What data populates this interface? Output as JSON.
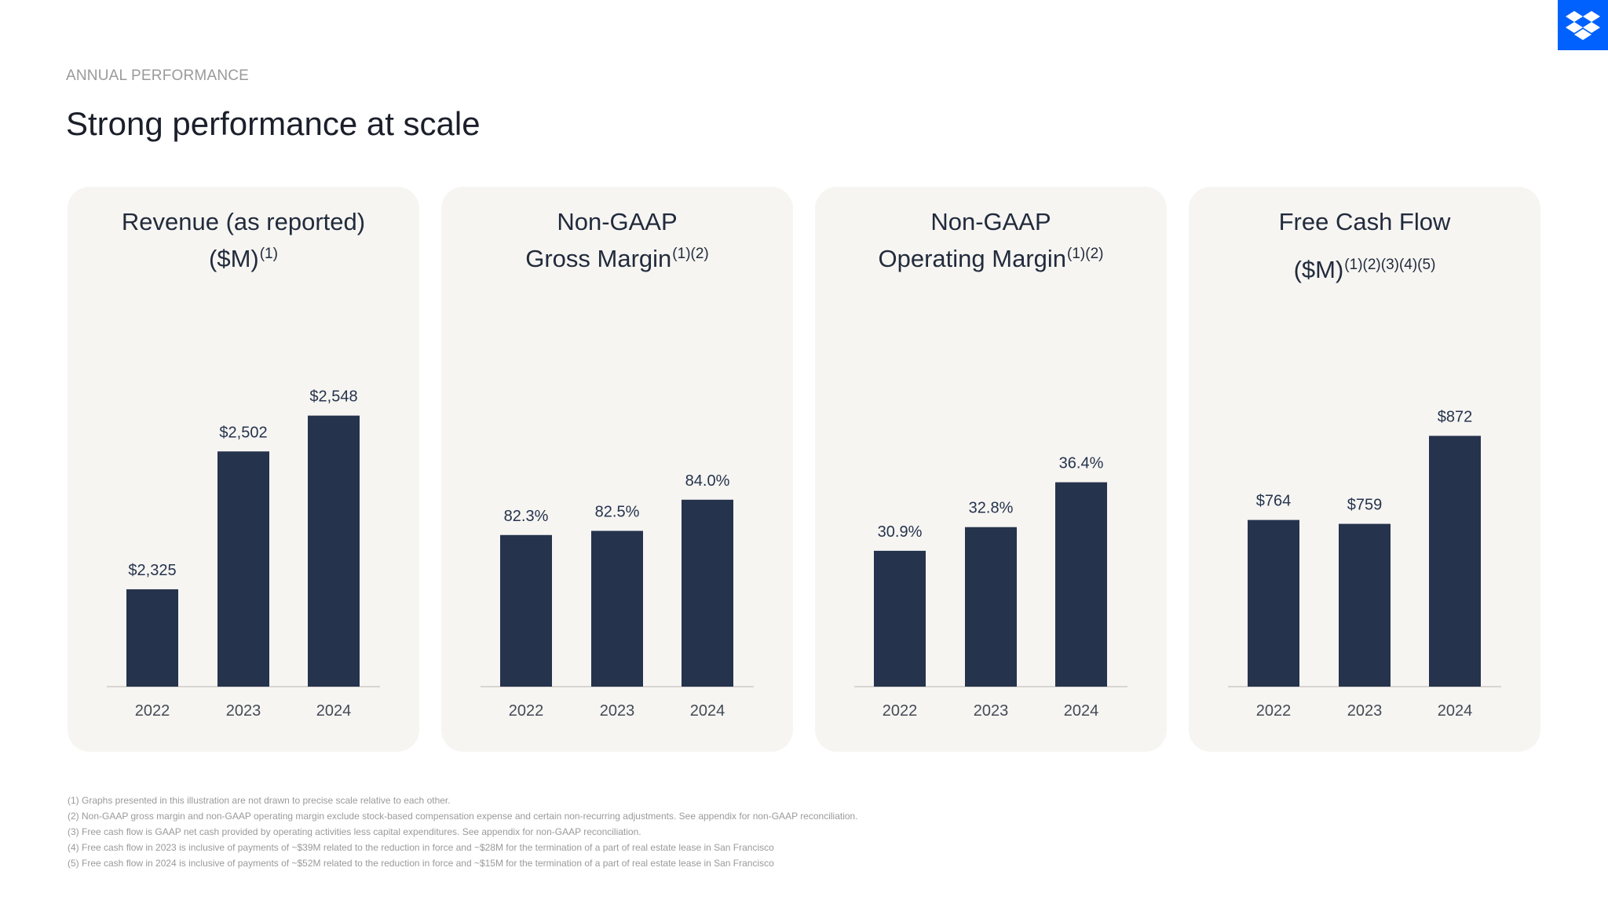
{
  "header": {
    "kicker": "ANNUAL PERFORMANCE",
    "title": "Strong performance at scale"
  },
  "logo": {
    "icon": "dropbox-box-icon",
    "color": "#0061fe"
  },
  "colors": {
    "bar": "#26334d",
    "card_bg": "#f6f5f2"
  },
  "chart_data": [
    {
      "type": "bar",
      "title_line1": "Revenue (as reported)",
      "title_line2": "($M)",
      "title_sup": "(1)",
      "categories": [
        "2022",
        "2023",
        "2024"
      ],
      "values": [
        2325,
        2502,
        2548
      ],
      "labels": [
        "$2,325",
        "$2,502",
        "$2,548"
      ],
      "ylim": [
        2200,
        2600
      ]
    },
    {
      "type": "bar",
      "title_line1": "Non-GAAP",
      "title_line2": "Gross Margin",
      "title_sup": "(1)(2)",
      "categories": [
        "2022",
        "2023",
        "2024"
      ],
      "values": [
        82.3,
        82.5,
        84.0
      ],
      "labels": [
        "82.3%",
        "82.5%",
        "84.0%"
      ],
      "ylim": [
        75,
        90
      ]
    },
    {
      "type": "bar",
      "title_line1": "Non-GAAP",
      "title_line2": "Operating Margin",
      "title_sup": "(1)(2)",
      "categories": [
        "2022",
        "2023",
        "2024"
      ],
      "values": [
        30.9,
        32.8,
        36.4
      ],
      "labels": [
        "30.9%",
        "32.8%",
        "36.4%"
      ],
      "ylim": [
        20,
        45
      ]
    },
    {
      "type": "bar",
      "title_line1": "Free Cash Flow",
      "title_line2": "($M)",
      "title_sup": "(1)(2)(3)(4)(5)",
      "categories": [
        "2022",
        "2023",
        "2024"
      ],
      "values": [
        764,
        759,
        872
      ],
      "labels": [
        "$764",
        "$759",
        "$872"
      ],
      "ylim": [
        550,
        950
      ]
    }
  ],
  "footnotes": [
    "(1) Graphs presented in this illustration are not drawn to precise scale relative to each other.",
    "(2) Non-GAAP gross margin and non-GAAP operating margin exclude stock-based compensation expense and certain non-recurring adjustments. See appendix for non-GAAP reconciliation.",
    "(3) Free cash flow is GAAP net cash provided by operating activities less capital expenditures. See appendix for non-GAAP reconciliation.",
    "(4) Free cash flow in 2023 is inclusive of payments of ~$39M related to the reduction in force and ~$28M for the termination of a part of real estate lease in San Francisco",
    "(5) Free cash flow in 2024 is inclusive of payments of ~$52M related to the reduction in force and ~$15M for the termination of a part of real estate lease in San Francisco"
  ]
}
